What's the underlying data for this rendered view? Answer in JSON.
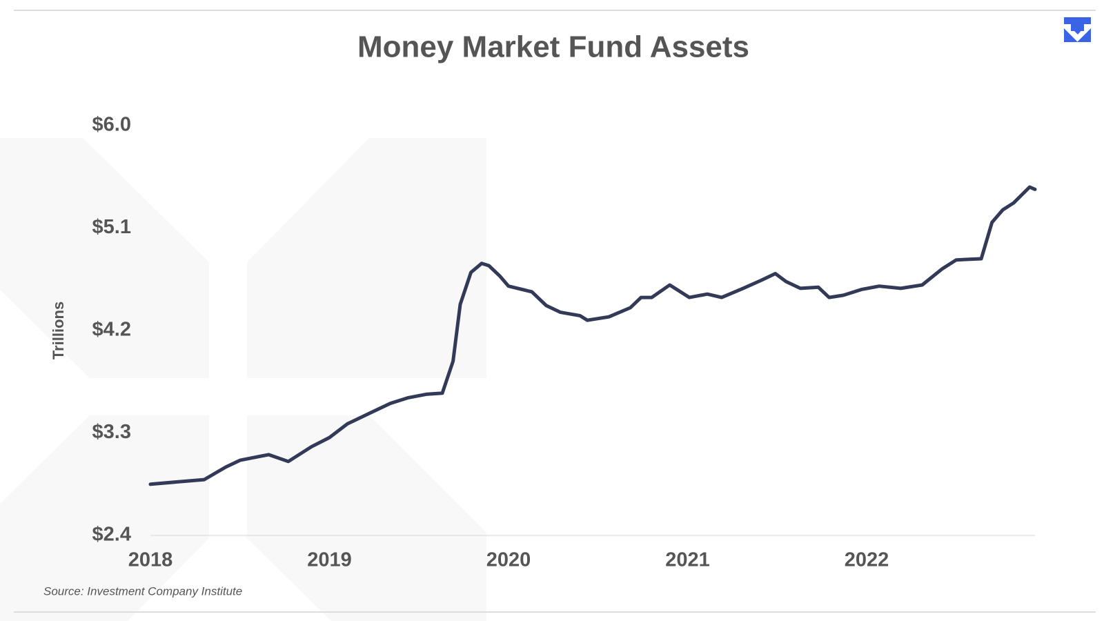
{
  "chart_data": {
    "type": "line",
    "title": "Money Market Fund Assets",
    "y_label": "Trillions",
    "source": "Source: Investment Company Institute",
    "x": [
      2018.0,
      2018.15,
      2018.3,
      2018.42,
      2018.5,
      2018.66,
      2018.77,
      2018.9,
      2019.0,
      2019.1,
      2019.22,
      2019.34,
      2019.44,
      2019.54,
      2019.63,
      2019.69,
      2019.73,
      2019.79,
      2019.85,
      2019.89,
      2019.95,
      2020.0,
      2020.13,
      2020.21,
      2020.29,
      2020.4,
      2020.44,
      2020.56,
      2020.68,
      2020.74,
      2020.8,
      2020.9,
      2021.01,
      2021.11,
      2021.19,
      2021.31,
      2021.41,
      2021.49,
      2021.55,
      2021.63,
      2021.73,
      2021.79,
      2021.87,
      2021.97,
      2022.07,
      2022.19,
      2022.31,
      2022.42,
      2022.5,
      2022.64,
      2022.7,
      2022.76,
      2022.82,
      2022.91,
      2022.94
    ],
    "series": [
      {
        "name": "Money Market Fund Assets",
        "color": "#323a58",
        "values": [
          2.85,
          2.87,
          2.89,
          3.0,
          3.06,
          3.11,
          3.05,
          3.18,
          3.26,
          3.38,
          3.47,
          3.56,
          3.61,
          3.64,
          3.65,
          3.93,
          4.43,
          4.71,
          4.79,
          4.77,
          4.68,
          4.59,
          4.54,
          4.42,
          4.36,
          4.33,
          4.29,
          4.32,
          4.4,
          4.49,
          4.49,
          4.6,
          4.49,
          4.52,
          4.49,
          4.57,
          4.64,
          4.7,
          4.63,
          4.57,
          4.58,
          4.49,
          4.51,
          4.56,
          4.59,
          4.57,
          4.6,
          4.74,
          4.82,
          4.83,
          5.15,
          5.26,
          5.32,
          5.46,
          5.44
        ]
      }
    ],
    "xlim": [
      2018,
      2022.94
    ],
    "xticks": [
      2018,
      2019,
      2020,
      2021,
      2022
    ],
    "ylim": [
      2.4,
      6.0
    ],
    "yticks": [
      {
        "value": 2.4,
        "label": "$2.4"
      },
      {
        "value": 3.3,
        "label": "$3.3"
      },
      {
        "value": 4.2,
        "label": "$4.2"
      },
      {
        "value": 5.1,
        "label": "$5.1"
      },
      {
        "value": 6.0,
        "label": "$6.0"
      }
    ],
    "grid": false
  }
}
